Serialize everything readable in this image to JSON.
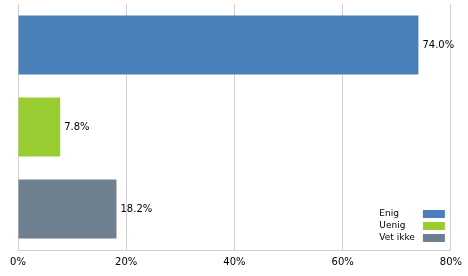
{
  "chart_data": {
    "type": "bar",
    "orientation": "horizontal",
    "categories": [
      "Enig",
      "Uenig",
      "Vet ikke"
    ],
    "values": [
      74.0,
      7.8,
      18.2
    ],
    "value_labels": [
      "74.0%",
      "7.8%",
      "18.2%"
    ],
    "colors": [
      "#4a80b9",
      "#9acd32",
      "#6e7f8f"
    ],
    "xlim": [
      0,
      80
    ],
    "xticks": [
      {
        "value": 0,
        "label": "0%"
      },
      {
        "value": 20,
        "label": "20%"
      },
      {
        "value": 40,
        "label": "40%"
      },
      {
        "value": 60,
        "label": "60%"
      },
      {
        "value": 80,
        "label": "80%"
      }
    ],
    "grid": true,
    "data_labels": true,
    "legend": "bottom right",
    "tick_labels": "x"
  }
}
